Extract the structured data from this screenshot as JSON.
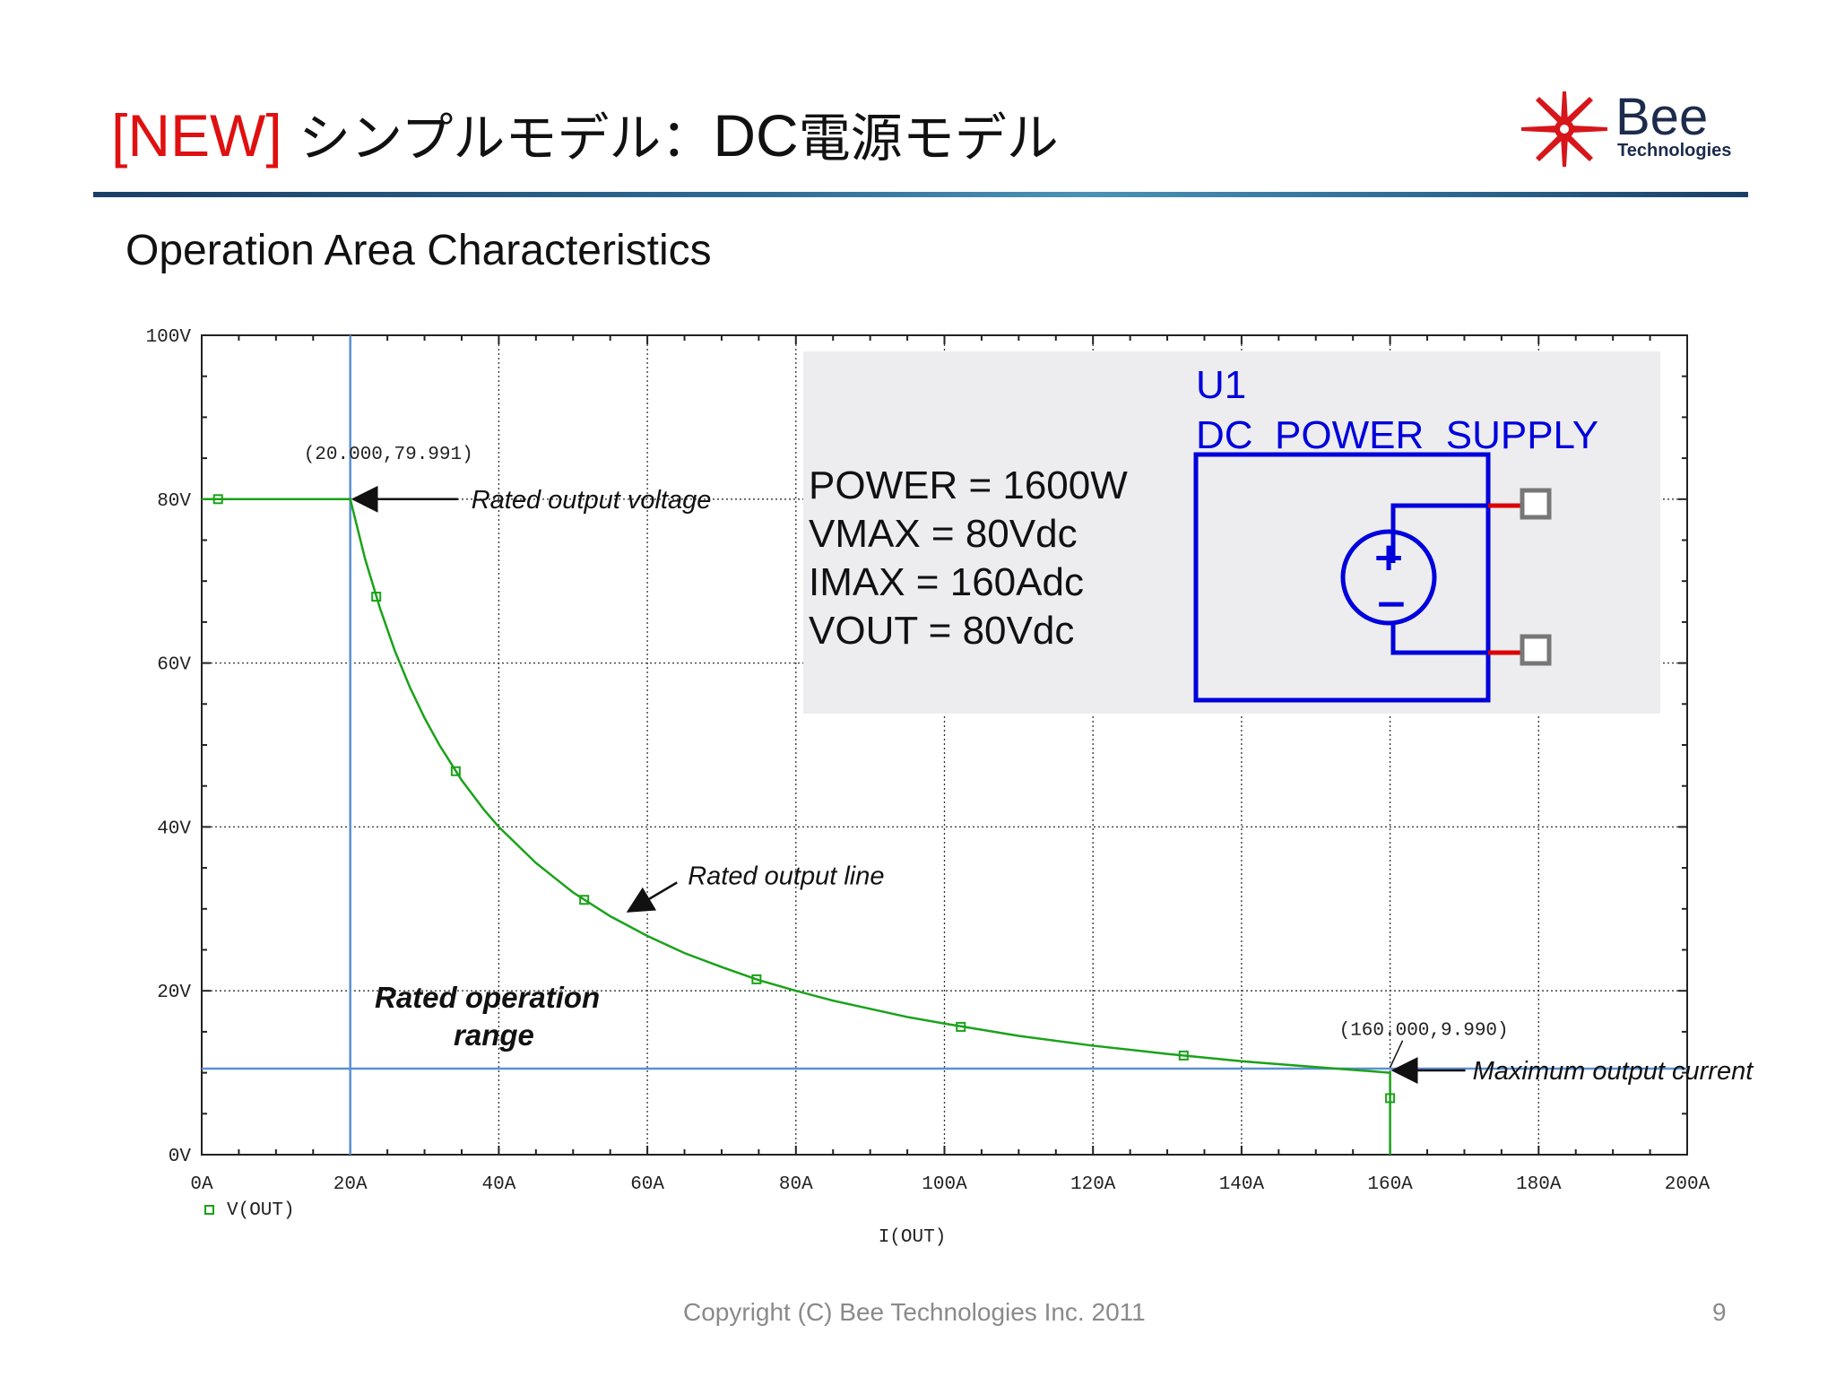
{
  "slide": {
    "title_tag": "[NEW]",
    "title_jp1": " シンプルモデル：",
    "title_dc": "DC",
    "title_jp2": "電源モデル",
    "subtitle": "Operation Area Characteristics",
    "copyright": "Copyright (C) Bee Technologies Inc. 2011",
    "page_number": "9",
    "logo": {
      "word": "Bee",
      "sub": "Technologies",
      "icon": "bee-burst-logo-icon"
    }
  },
  "colors": {
    "title_accent": "#e01010",
    "curve": "#1aa21a",
    "cursor_line": "#5b8fd6",
    "schematic": "#0000dd",
    "pin": "#dd0000",
    "box_bg": "#ededf0"
  },
  "chart_data": {
    "type": "line",
    "xlabel": "I(OUT)",
    "ylabel": "",
    "xlim": [
      0,
      200
    ],
    "ylim": [
      0,
      100
    ],
    "grid": true,
    "legend_position": "bottom-left",
    "x_ticks": [
      "0A",
      "20A",
      "40A",
      "60A",
      "80A",
      "100A",
      "120A",
      "140A",
      "160A",
      "180A",
      "200A"
    ],
    "y_ticks": [
      "0V",
      "20V",
      "40V",
      "60V",
      "80V",
      "100V"
    ],
    "series": [
      {
        "name": "V(OUT)",
        "x": [
          0,
          20,
          22,
          24,
          26,
          28,
          30,
          32,
          35,
          38,
          40,
          45,
          50,
          55,
          60,
          65,
          70,
          75,
          80,
          85,
          90,
          95,
          100,
          110,
          120,
          130,
          140,
          150,
          160,
          160
        ],
        "y": [
          80,
          80,
          72.7,
          66.7,
          61.5,
          57.1,
          53.3,
          50,
          45.7,
          42.1,
          40,
          35.6,
          32,
          29.1,
          26.7,
          24.6,
          22.9,
          21.3,
          20,
          18.8,
          17.8,
          16.8,
          16,
          14.5,
          13.3,
          12.3,
          11.4,
          10.7,
          10,
          0
        ],
        "markers": [
          {
            "x": 2.2,
            "y": 80
          },
          {
            "x": 23.5,
            "y": 68.1
          },
          {
            "x": 34.2,
            "y": 46.8
          },
          {
            "x": 51.5,
            "y": 31.1
          },
          {
            "x": 74.7,
            "y": 21.4
          },
          {
            "x": 102.2,
            "y": 15.6
          },
          {
            "x": 132.2,
            "y": 12.1
          },
          {
            "x": 160,
            "y": 6.9
          }
        ]
      }
    ],
    "cursor_lines": {
      "vertical_x": 20,
      "horizontal_y": 10.5
    },
    "annotations": [
      {
        "text": "(20.000,79.991)",
        "x": 20,
        "y": 80
      },
      {
        "text": "Rated output voltage",
        "x": 20,
        "y": 80
      },
      {
        "text": "Rated output line",
        "x": 57,
        "y": 29.5
      },
      {
        "text": "Rated operation range"
      },
      {
        "text": "(160.000,9.990)",
        "x": 160,
        "y": 9.99
      },
      {
        "text": "Maximum output current",
        "x": 160,
        "y": 10.5
      }
    ],
    "inset": {
      "ref": "U1",
      "part": "DC_POWER_SUPPLY",
      "params": [
        "POWER  = 1600W",
        "VMAX = 80Vdc",
        "IMAX = 160Adc",
        "VOUT = 80Vdc"
      ],
      "plus": "+",
      "minus": "−"
    }
  }
}
